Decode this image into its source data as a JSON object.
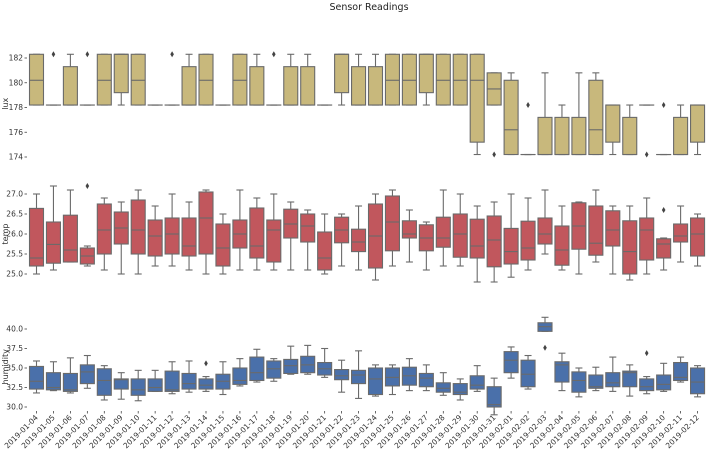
{
  "chart_data": {
    "type": "box",
    "title": "Sensor Readings",
    "grid": false,
    "categories": [
      "2019-01-04",
      "2019-01-05",
      "2019-01-06",
      "2019-01-07",
      "2019-01-08",
      "2019-01-09",
      "2019-01-10",
      "2019-01-11",
      "2019-01-12",
      "2019-01-13",
      "2019-01-14",
      "2019-01-15",
      "2019-01-16",
      "2019-01-17",
      "2019-01-18",
      "2019-01-19",
      "2019-01-20",
      "2019-01-21",
      "2019-01-22",
      "2019-01-23",
      "2019-01-24",
      "2019-01-25",
      "2019-01-26",
      "2019-01-27",
      "2019-01-28",
      "2019-01-29",
      "2019-01-30",
      "2019-01-31",
      "2019-02-01",
      "2019-02-02",
      "2019-02-03",
      "2019-02-04",
      "2019-02-05",
      "2019-02-06",
      "2019-02-07",
      "2019-02-08",
      "2019-02-09",
      "2019-02-10",
      "2019-02-11",
      "2019-02-12"
    ],
    "panels": [
      {
        "ylabel": "lux",
        "color": "#c8b87c",
        "ylim": [
          173.8,
          182.8
        ],
        "yticks": [
          "174",
          "176",
          "178",
          "180",
          "182"
        ],
        "stat_order": [
          "whisker_low",
          "q1",
          "median",
          "q3",
          "whisker_high"
        ],
        "stats": [
          [
            178.2,
            178.2,
            180.2,
            182.3,
            182.3
          ],
          [
            178.2,
            178.2,
            178.2,
            178.2,
            178.2
          ],
          [
            178.2,
            178.2,
            178.2,
            181.3,
            182.3
          ],
          [
            178.2,
            178.2,
            178.2,
            178.2,
            178.2
          ],
          [
            178.2,
            178.2,
            180.2,
            182.3,
            182.3
          ],
          [
            178.2,
            179.2,
            182.3,
            182.3,
            182.3
          ],
          [
            178.2,
            178.2,
            180.2,
            182.3,
            182.3
          ],
          [
            178.2,
            178.2,
            178.2,
            178.2,
            178.2
          ],
          [
            178.2,
            178.2,
            178.2,
            178.2,
            178.2
          ],
          [
            178.2,
            178.2,
            178.2,
            181.3,
            182.3
          ],
          [
            178.2,
            178.2,
            180.2,
            182.3,
            182.3
          ],
          [
            178.2,
            178.2,
            178.2,
            178.2,
            178.2
          ],
          [
            178.2,
            178.2,
            180.2,
            182.3,
            182.3
          ],
          [
            178.2,
            178.2,
            178.2,
            181.3,
            182.3
          ],
          [
            178.2,
            178.2,
            178.2,
            178.2,
            178.2
          ],
          [
            178.2,
            178.2,
            178.2,
            181.3,
            182.3
          ],
          [
            178.2,
            178.2,
            178.2,
            181.3,
            182.3
          ],
          [
            178.2,
            178.2,
            178.2,
            178.2,
            178.2
          ],
          [
            178.2,
            179.2,
            182.3,
            182.3,
            182.3
          ],
          [
            178.2,
            178.2,
            178.2,
            181.3,
            182.3
          ],
          [
            178.2,
            178.2,
            178.2,
            181.3,
            182.3
          ],
          [
            178.2,
            178.2,
            180.2,
            182.3,
            182.3
          ],
          [
            178.2,
            178.2,
            180.2,
            182.3,
            182.3
          ],
          [
            178.2,
            179.2,
            182.3,
            182.3,
            182.3
          ],
          [
            178.2,
            178.2,
            180.2,
            182.3,
            182.3
          ],
          [
            178.2,
            178.2,
            180.2,
            182.3,
            182.3
          ],
          [
            174.2,
            175.2,
            180.2,
            182.3,
            182.3
          ],
          [
            178.2,
            178.2,
            179.5,
            180.8,
            180.8
          ],
          [
            174.2,
            174.2,
            176.2,
            180.2,
            180.8
          ],
          [
            174.2,
            174.2,
            174.2,
            174.2,
            174.2
          ],
          [
            174.2,
            174.2,
            174.2,
            177.2,
            180.8
          ],
          [
            174.2,
            174.2,
            174.2,
            177.2,
            178.2
          ],
          [
            174.2,
            174.2,
            174.2,
            177.2,
            180.8
          ],
          [
            174.2,
            174.2,
            176.2,
            180.2,
            180.8
          ],
          [
            174.2,
            175.2,
            178.2,
            178.2,
            178.2
          ],
          [
            174.2,
            174.2,
            174.2,
            177.2,
            178.2
          ],
          [
            178.2,
            178.2,
            178.2,
            178.2,
            178.2
          ],
          [
            174.2,
            174.2,
            174.2,
            174.2,
            174.2
          ],
          [
            174.2,
            174.2,
            174.2,
            177.2,
            178.2
          ],
          [
            174.2,
            175.2,
            178.2,
            178.2,
            178.2
          ]
        ],
        "outliers": {
          "2019-01-05": [
            182.3
          ],
          "2019-01-07": [
            182.3
          ],
          "2019-01-12": [
            182.3
          ],
          "2019-01-18": [
            182.3
          ],
          "2019-01-31": [
            174.2
          ],
          "2019-02-02": [
            178.2
          ],
          "2019-02-09": [
            174.2
          ],
          "2019-02-10": [
            178.2
          ]
        }
      },
      {
        "ylabel": "temp",
        "color": "#c1575d",
        "ylim": [
          24.7,
          27.3
        ],
        "yticks": [
          "25.0",
          "25.5",
          "26.0",
          "26.5",
          "27.0"
        ],
        "stat_order": [
          "whisker_low",
          "q1",
          "median",
          "q3",
          "whisker_high"
        ],
        "stats": [
          [
            25.0,
            25.2,
            25.4,
            26.64,
            27.0
          ],
          [
            25.1,
            25.27,
            25.74,
            26.3,
            27.2
          ],
          [
            25.3,
            25.3,
            25.6,
            26.47,
            27.1
          ],
          [
            25.2,
            25.25,
            25.45,
            25.65,
            25.7
          ],
          [
            25.1,
            25.5,
            26.1,
            26.75,
            26.9
          ],
          [
            25.0,
            25.75,
            26.15,
            26.55,
            26.8
          ],
          [
            25.0,
            25.5,
            26.1,
            26.85,
            27.1
          ],
          [
            25.2,
            25.45,
            25.95,
            26.35,
            26.7
          ],
          [
            25.2,
            25.5,
            26.0,
            26.4,
            27.0
          ],
          [
            25.1,
            25.45,
            25.7,
            26.4,
            26.8
          ],
          [
            25.0,
            25.5,
            26.4,
            27.05,
            27.1
          ],
          [
            25.0,
            25.2,
            25.65,
            26.25,
            26.5
          ],
          [
            25.1,
            25.65,
            26.0,
            26.35,
            27.1
          ],
          [
            25.1,
            25.4,
            25.7,
            26.65,
            26.9
          ],
          [
            25.1,
            25.3,
            26.1,
            26.35,
            27.0
          ],
          [
            25.1,
            25.9,
            26.25,
            26.62,
            26.8
          ],
          [
            25.1,
            25.8,
            26.2,
            26.5,
            26.6
          ],
          [
            25.0,
            25.1,
            25.4,
            26.05,
            26.5
          ],
          [
            25.2,
            25.78,
            26.1,
            26.42,
            26.5
          ],
          [
            25.1,
            25.56,
            25.8,
            26.12,
            26.7
          ],
          [
            24.85,
            25.15,
            25.95,
            26.75,
            27.0
          ],
          [
            25.2,
            25.58,
            26.3,
            26.95,
            27.1
          ],
          [
            25.3,
            25.9,
            26.0,
            26.33,
            26.6
          ],
          [
            25.1,
            25.58,
            25.9,
            26.23,
            26.3
          ],
          [
            25.2,
            25.67,
            25.9,
            26.42,
            27.1
          ],
          [
            25.2,
            25.42,
            26.0,
            26.5,
            27.0
          ],
          [
            24.8,
            25.4,
            25.7,
            26.37,
            26.7
          ],
          [
            24.8,
            25.18,
            25.85,
            26.45,
            26.8
          ],
          [
            24.92,
            25.25,
            25.56,
            26.14,
            27.0
          ],
          [
            25.1,
            25.35,
            25.65,
            26.32,
            26.9
          ],
          [
            25.5,
            25.75,
            26.0,
            26.4,
            27.1
          ],
          [
            25.1,
            25.22,
            25.6,
            26.2,
            26.7
          ],
          [
            25.0,
            25.62,
            26.2,
            26.78,
            26.8
          ],
          [
            25.3,
            25.47,
            25.77,
            26.7,
            27.1
          ],
          [
            25.0,
            25.7,
            26.1,
            26.58,
            26.7
          ],
          [
            24.85,
            25.0,
            25.56,
            26.33,
            26.7
          ],
          [
            25.0,
            25.35,
            26.1,
            26.4,
            26.9
          ],
          [
            25.1,
            25.4,
            25.75,
            25.88,
            25.9
          ],
          [
            25.3,
            25.8,
            25.95,
            26.25,
            26.7
          ],
          [
            25.2,
            25.45,
            26.0,
            26.4,
            26.5
          ]
        ],
        "outliers": {
          "2019-01-07": [
            27.2
          ],
          "2019-02-10": [
            26.6
          ]
        }
      },
      {
        "ylabel": "humidity",
        "color": "#4a70aa",
        "ylim": [
          28.5,
          41.8
        ],
        "yticks": [
          "30.0",
          "32.5",
          "35.0",
          "37.5",
          "40.0"
        ],
        "stat_order": [
          "whisker_low",
          "q1",
          "median",
          "q3",
          "whisker_high"
        ],
        "stats": [
          [
            31.8,
            32.3,
            33.3,
            35.2,
            35.9
          ],
          [
            32.1,
            32.2,
            32.5,
            34.4,
            35.8
          ],
          [
            31.8,
            32.0,
            32.2,
            34.3,
            36.3
          ],
          [
            32.4,
            33.0,
            34.5,
            35.4,
            36.6
          ],
          [
            30.9,
            31.5,
            33.4,
            34.9,
            35.3
          ],
          [
            31.0,
            32.3,
            33.5,
            33.6,
            34.4
          ],
          [
            30.8,
            31.5,
            32.2,
            33.6,
            34.7
          ],
          [
            32.0,
            32.0,
            32.5,
            33.6,
            34.7
          ],
          [
            31.7,
            32.0,
            32.2,
            34.6,
            35.8
          ],
          [
            31.9,
            32.3,
            33.0,
            34.3,
            35.9
          ],
          [
            32.0,
            32.3,
            32.8,
            33.6,
            33.9
          ],
          [
            31.6,
            32.3,
            33.3,
            34.2,
            35.8
          ],
          [
            32.7,
            32.9,
            33.4,
            35.0,
            36.2
          ],
          [
            33.2,
            33.4,
            34.4,
            36.4,
            37.4
          ],
          [
            33.3,
            33.7,
            34.9,
            35.9,
            36.2
          ],
          [
            34.2,
            34.3,
            35.3,
            36.1,
            37.8
          ],
          [
            34.2,
            34.4,
            35.4,
            36.5,
            37.9
          ],
          [
            33.8,
            34.1,
            34.9,
            35.7,
            37.5
          ],
          [
            31.9,
            33.5,
            34.0,
            34.8,
            36.0
          ],
          [
            31.1,
            33.0,
            34.1,
            34.7,
            37.2
          ],
          [
            31.4,
            31.6,
            33.6,
            35.0,
            35.4
          ],
          [
            31.6,
            32.7,
            33.8,
            35.0,
            35.4
          ],
          [
            32.1,
            32.8,
            34.0,
            35.1,
            36.2
          ],
          [
            32.1,
            32.6,
            33.7,
            34.3,
            35.4
          ],
          [
            31.5,
            31.9,
            32.4,
            33.1,
            34.4
          ],
          [
            30.9,
            31.6,
            31.9,
            33.0,
            33.6
          ],
          [
            32.0,
            32.3,
            32.8,
            34.0,
            35.3
          ],
          [
            29.0,
            30.0,
            30.3,
            32.6,
            33.7
          ],
          [
            33.7,
            34.4,
            36.0,
            37.1,
            37.7
          ],
          [
            32.3,
            32.6,
            34.2,
            36.0,
            36.6
          ],
          [
            39.7,
            39.7,
            40.3,
            40.8,
            41.5
          ],
          [
            32.1,
            33.2,
            35.4,
            35.8,
            36.9
          ],
          [
            31.3,
            31.9,
            33.4,
            34.5,
            35.0
          ],
          [
            32.1,
            32.4,
            32.6,
            34.1,
            35.1
          ],
          [
            32.0,
            32.6,
            33.1,
            34.4,
            36.4
          ],
          [
            31.4,
            32.6,
            34.4,
            34.6,
            35.4
          ],
          [
            31.7,
            32.1,
            32.6,
            33.6,
            33.9
          ],
          [
            32.0,
            32.2,
            32.9,
            34.1,
            35.6
          ],
          [
            33.2,
            33.4,
            33.8,
            35.7,
            36.4
          ],
          [
            31.3,
            31.7,
            33.2,
            35.0,
            35.3
          ]
        ],
        "outliers": {
          "2019-01-14": [
            35.6
          ],
          "2019-02-03": [
            37.6
          ],
          "2019-02-09": [
            36.9
          ]
        }
      }
    ]
  }
}
